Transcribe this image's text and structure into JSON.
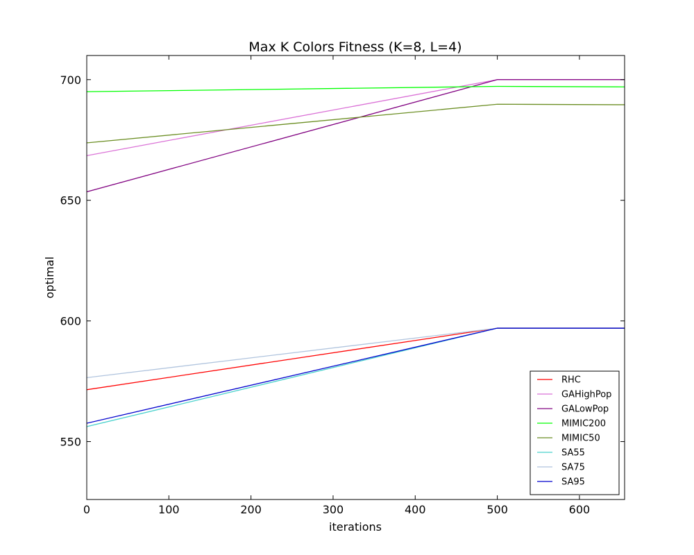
{
  "chart_data": {
    "type": "line",
    "title": "Max K Colors Fitness (K=8, L=4)",
    "xlabel": "iterations",
    "ylabel": "optimal",
    "xlim": [
      0,
      655
    ],
    "ylim": [
      526,
      710
    ],
    "xticks": [
      0,
      100,
      200,
      300,
      400,
      500,
      600
    ],
    "yticks": [
      550,
      600,
      650,
      700
    ],
    "grid": false,
    "legend_position": "lower-right",
    "x": [
      0,
      500,
      655
    ],
    "series": [
      {
        "name": "RHC",
        "color": "#ff0000",
        "values": [
          571.5,
          597,
          597
        ]
      },
      {
        "name": "GAHighPop",
        "color": "#da70d6",
        "values": [
          668.5,
          700,
          700
        ]
      },
      {
        "name": "GALowPop",
        "color": "#800080",
        "values": [
          653.5,
          700,
          700
        ]
      },
      {
        "name": "MIMIC200",
        "color": "#00ff00",
        "values": [
          695,
          697.2,
          697
        ]
      },
      {
        "name": "MIMIC50",
        "color": "#6b8e23",
        "values": [
          673.8,
          689.8,
          689.6
        ]
      },
      {
        "name": "SA55",
        "color": "#48d1cc",
        "values": [
          556.2,
          597,
          597
        ]
      },
      {
        "name": "SA75",
        "color": "#b0c4de",
        "values": [
          576.5,
          597,
          597
        ]
      },
      {
        "name": "SA95",
        "color": "#0000cd",
        "values": [
          557.6,
          597,
          597
        ]
      }
    ]
  }
}
